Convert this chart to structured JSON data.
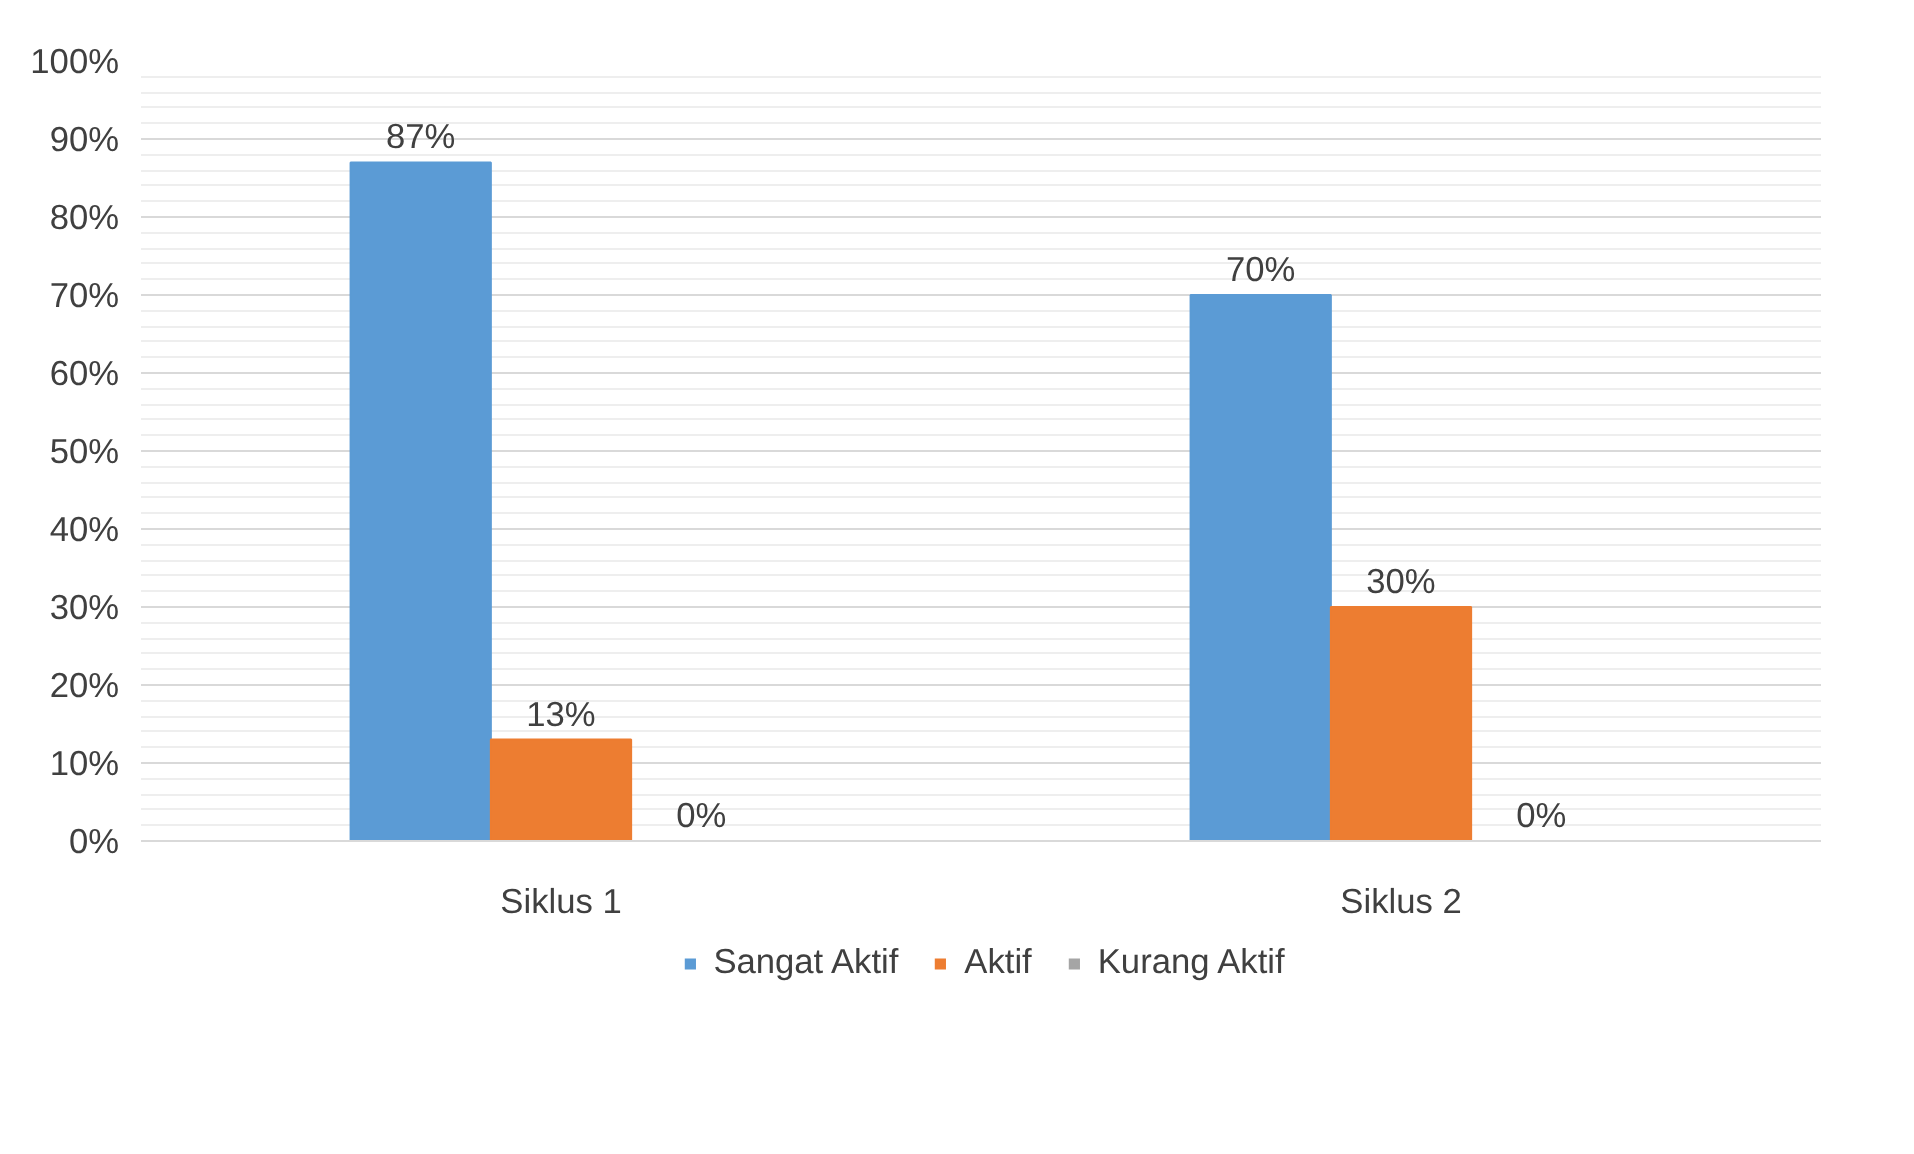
{
  "chart_data": {
    "type": "bar",
    "categories": [
      "Siklus 1",
      "Siklus 2"
    ],
    "series": [
      {
        "name": "Sangat Aktif",
        "color": "#5b9bd5",
        "values": [
          87,
          70
        ],
        "value_labels": [
          "87%",
          "70%"
        ]
      },
      {
        "name": "Aktif",
        "color": "#ed7d31",
        "values": [
          13,
          30
        ],
        "value_labels": [
          "13%",
          "30%"
        ]
      },
      {
        "name": "Kurang Aktif",
        "color": "#a5a5a5",
        "values": [
          0,
          0
        ],
        "value_labels": [
          "0%",
          "0%"
        ]
      }
    ],
    "ylim": [
      0,
      100
    ],
    "yticks": [
      {
        "value": 0,
        "label": "0%"
      },
      {
        "value": 10,
        "label": "10%"
      },
      {
        "value": 20,
        "label": "20%"
      },
      {
        "value": 30,
        "label": "30%"
      },
      {
        "value": 40,
        "label": "40%"
      },
      {
        "value": 50,
        "label": "50%"
      },
      {
        "value": 60,
        "label": "60%"
      },
      {
        "value": 70,
        "label": "70%"
      },
      {
        "value": 80,
        "label": "80%"
      },
      {
        "value": 90,
        "label": "90%"
      },
      {
        "value": 100,
        "label": "100%"
      }
    ],
    "grid": "y",
    "legend": "bottom"
  }
}
